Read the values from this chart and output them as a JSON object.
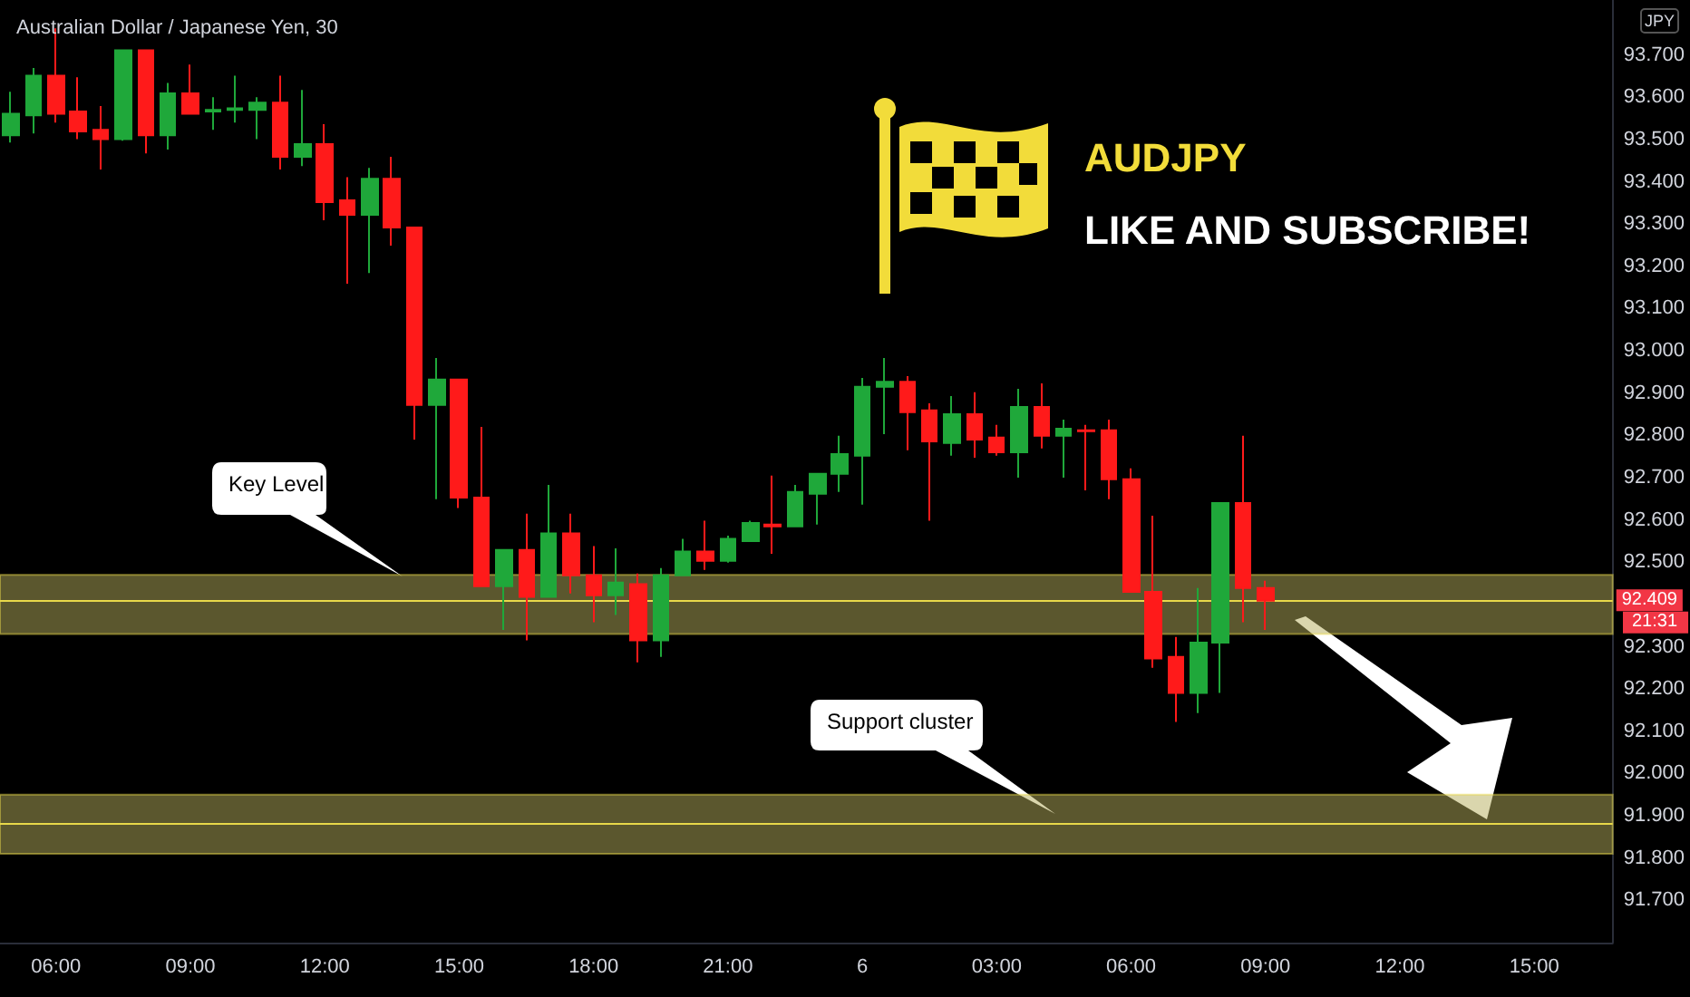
{
  "chart_data": {
    "type": "candlestick",
    "title": "Australian Dollar / Japanese Yen, 30",
    "categories": [
      null,
      null,
      "06:00",
      null,
      null,
      null,
      null,
      null,
      "09:00",
      null,
      null,
      null,
      null,
      null,
      "12:00",
      null,
      null,
      null,
      null,
      null,
      "15:00",
      null,
      null,
      null,
      null,
      null,
      "18:00",
      null,
      null,
      null,
      null,
      null,
      "21:00",
      null,
      null,
      null,
      null,
      null,
      "6",
      null,
      null,
      null,
      null,
      null,
      "03:00",
      null,
      null,
      null,
      null,
      null,
      "06:00",
      null,
      null,
      null,
      null,
      null,
      "09:00",
      null,
      null,
      null,
      null,
      null,
      "12:00",
      null,
      null,
      null,
      null,
      null,
      "15:00",
      null,
      null,
      null
    ],
    "ohlc": [
      [
        93.51,
        93.613,
        93.493,
        93.561
      ],
      [
        93.557,
        93.669,
        93.514,
        93.651
      ],
      [
        93.651,
        93.763,
        93.54,
        93.561
      ],
      [
        93.566,
        93.647,
        93.501,
        93.519
      ],
      [
        93.523,
        93.579,
        93.429,
        93.501
      ],
      [
        93.501,
        93.711,
        93.497,
        93.711
      ],
      [
        93.711,
        93.711,
        93.467,
        93.51
      ],
      [
        93.51,
        93.634,
        93.476,
        93.609
      ],
      [
        93.609,
        93.677,
        93.561,
        93.561
      ],
      [
        93.566,
        93.6,
        93.523,
        93.57
      ],
      [
        93.57,
        93.651,
        93.54,
        93.574
      ],
      [
        93.57,
        93.6,
        93.501,
        93.587
      ],
      [
        93.587,
        93.651,
        93.429,
        93.459
      ],
      [
        93.459,
        93.617,
        93.437,
        93.489
      ],
      [
        93.489,
        93.536,
        93.309,
        93.352
      ],
      [
        93.356,
        93.411,
        93.159,
        93.322
      ],
      [
        93.322,
        93.433,
        93.184,
        93.407
      ],
      [
        93.407,
        93.459,
        93.249,
        93.292
      ],
      [
        93.292,
        93.292,
        92.79,
        92.872
      ],
      [
        92.872,
        92.983,
        92.649,
        92.932
      ],
      [
        92.932,
        92.932,
        92.628,
        92.653
      ],
      [
        92.653,
        92.82,
        92.443,
        92.443
      ],
      [
        92.443,
        92.529,
        92.34,
        92.529
      ],
      [
        92.529,
        92.615,
        92.315,
        92.418
      ],
      [
        92.418,
        92.683,
        92.418,
        92.568
      ],
      [
        92.568,
        92.615,
        92.426,
        92.469
      ],
      [
        92.469,
        92.538,
        92.358,
        92.422
      ],
      [
        92.422,
        92.533,
        92.375,
        92.452
      ],
      [
        92.448,
        92.473,
        92.263,
        92.315
      ],
      [
        92.315,
        92.486,
        92.276,
        92.469
      ],
      [
        92.469,
        92.555,
        92.469,
        92.525
      ],
      [
        92.525,
        92.598,
        92.482,
        92.503
      ],
      [
        92.503,
        92.563,
        92.499,
        92.555
      ],
      [
        92.55,
        92.598,
        92.55,
        92.593
      ],
      [
        92.589,
        92.705,
        92.52,
        92.585
      ],
      [
        92.585,
        92.683,
        92.585,
        92.666
      ],
      [
        92.662,
        92.709,
        92.589,
        92.709
      ],
      [
        92.709,
        92.799,
        92.666,
        92.756
      ],
      [
        92.752,
        92.936,
        92.636,
        92.915
      ],
      [
        92.915,
        92.983,
        92.803,
        92.927
      ],
      [
        92.927,
        92.94,
        92.765,
        92.855
      ],
      [
        92.859,
        92.876,
        92.598,
        92.786
      ],
      [
        92.782,
        92.893,
        92.752,
        92.85
      ],
      [
        92.85,
        92.902,
        92.747,
        92.79
      ],
      [
        92.795,
        92.825,
        92.752,
        92.76
      ],
      [
        92.76,
        92.91,
        92.7,
        92.867
      ],
      [
        92.867,
        92.923,
        92.769,
        92.799
      ],
      [
        92.799,
        92.837,
        92.7,
        92.816
      ],
      [
        92.812,
        92.825,
        92.67,
        92.81
      ],
      [
        92.812,
        92.837,
        92.649,
        92.696
      ],
      [
        92.696,
        92.722,
        92.43,
        92.43
      ],
      [
        92.43,
        92.61,
        92.25,
        92.272
      ],
      [
        92.276,
        92.323,
        92.122,
        92.191
      ],
      [
        92.191,
        92.439,
        92.143,
        92.31
      ],
      [
        92.31,
        92.64,
        92.191,
        92.64
      ],
      [
        92.64,
        92.799,
        92.358,
        92.439
      ],
      [
        92.439,
        92.456,
        92.34,
        92.409
      ],
      null,
      null,
      null,
      null,
      null,
      null,
      null,
      null,
      null,
      null,
      null,
      null,
      null,
      null,
      null
    ],
    "colors": [
      "#1fa83a",
      "#1fa83a",
      "#ff1a1a",
      "#ff1a1a",
      "#ff1a1a",
      "#1fa83a",
      "#ff1a1a",
      "#1fa83a",
      "#ff1a1a",
      "#1fa83a",
      "#1fa83a",
      "#1fa83a",
      "#ff1a1a",
      "#1fa83a",
      "#ff1a1a",
      "#ff1a1a",
      "#1fa83a",
      "#ff1a1a",
      "#ff1a1a",
      "#1fa83a",
      "#ff1a1a",
      "#ff1a1a",
      "#1fa83a",
      "#ff1a1a",
      "#1fa83a",
      "#ff1a1a",
      "#ff1a1a",
      "#1fa83a",
      "#ff1a1a",
      "#1fa83a",
      "#1fa83a",
      "#ff1a1a",
      "#1fa83a",
      "#1fa83a",
      "#ff1a1a",
      "#1fa83a",
      "#1fa83a",
      "#1fa83a",
      "#1fa83a",
      "#1fa83a",
      "#ff1a1a",
      "#ff1a1a",
      "#1fa83a",
      "#ff1a1a",
      "#ff1a1a",
      "#1fa83a",
      "#ff1a1a",
      "#1fa83a",
      "#ff1a1a",
      "#ff1a1a",
      "#ff1a1a",
      "#ff1a1a",
      "#ff1a1a",
      "#1fa83a",
      "#1fa83a",
      "#ff1a1a",
      "#ff1a1a",
      null,
      null,
      null,
      null,
      null,
      null,
      null,
      null,
      null,
      null,
      null,
      null,
      null,
      null,
      null
    ],
    "ylim": [
      91.6,
      93.83
    ],
    "yticks": [
      {
        "value": 91.7,
        "label": "91.700"
      },
      {
        "value": 91.8,
        "label": "91.800"
      },
      {
        "value": 91.9,
        "label": "91.900"
      },
      {
        "value": 92.0,
        "label": "92.000"
      },
      {
        "value": 92.1,
        "label": "92.100"
      },
      {
        "value": 92.2,
        "label": "92.200"
      },
      {
        "value": 92.3,
        "label": "92.300"
      },
      {
        "value": 92.5,
        "label": "92.500"
      },
      {
        "value": 92.6,
        "label": "92.600"
      },
      {
        "value": 92.7,
        "label": "92.700"
      },
      {
        "value": 92.8,
        "label": "92.800"
      },
      {
        "value": 92.9,
        "label": "92.900"
      },
      {
        "value": 93.0,
        "label": "93.000"
      },
      {
        "value": 93.1,
        "label": "93.100"
      },
      {
        "value": 93.2,
        "label": "93.200"
      },
      {
        "value": 93.3,
        "label": "93.300"
      },
      {
        "value": 93.4,
        "label": "93.400"
      },
      {
        "value": 93.5,
        "label": "93.500"
      },
      {
        "value": 93.6,
        "label": "93.600"
      },
      {
        "value": 93.7,
        "label": "93.700"
      }
    ],
    "bands": [
      {
        "axis": "y",
        "from": 92.33,
        "to": 92.47,
        "color": "#b5ad5c"
      },
      {
        "axis": "y",
        "from": 91.81,
        "to": 91.95,
        "color": "#b5ad5c"
      }
    ],
    "ref_lines": [
      {
        "axis": "y",
        "value": 92.409,
        "label": "92.409",
        "color": "#e8d84a"
      },
      {
        "axis": "y",
        "value": 91.88,
        "color": "#e8d84a"
      }
    ],
    "annotations": [
      "JPY",
      "21:31",
      "AUDJPY",
      "LIKE AND SUBSCRIBE!",
      "Key Level",
      "Support cluster"
    ]
  }
}
